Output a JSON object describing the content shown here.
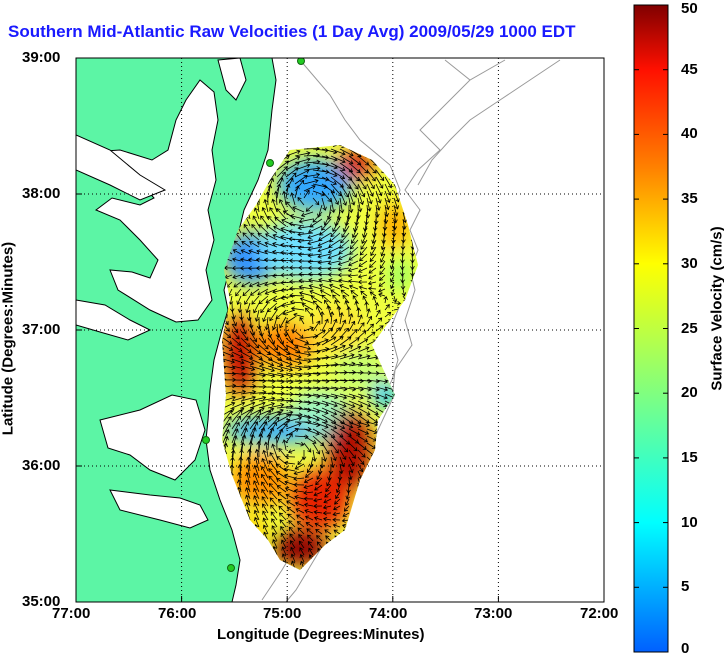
{
  "title": "Southern Mid-Atlantic Raw Velocities (1 Day Avg) 2009/05/29 1000 EDT",
  "axes": {
    "xlabel": "Longitude (Degrees:Minutes)",
    "ylabel": "Latitude (Degrees:Minutes)",
    "x_ticks": [
      "77:00",
      "76:00",
      "75:00",
      "74:00",
      "73:00",
      "72:00"
    ],
    "y_ticks": [
      "39:00",
      "38:00",
      "37:00",
      "36:00",
      "35:00"
    ],
    "x_range_deg_west": [
      77,
      72
    ],
    "y_range_deg_north": [
      35,
      39
    ],
    "grid": "dotted"
  },
  "colorbar": {
    "label": "Surface Velocity (cm/s)",
    "ticks": [
      "50",
      "45",
      "40",
      "35",
      "30",
      "25",
      "20",
      "15",
      "10",
      "5",
      "0"
    ],
    "range": [
      0,
      50
    ],
    "colormap": "jet"
  },
  "colors": {
    "land": "#5cf5a5",
    "coastline": "#000000",
    "bathymetry": "#9a9a9a",
    "title": "#1a1aff",
    "station": "#22cc22"
  }
}
